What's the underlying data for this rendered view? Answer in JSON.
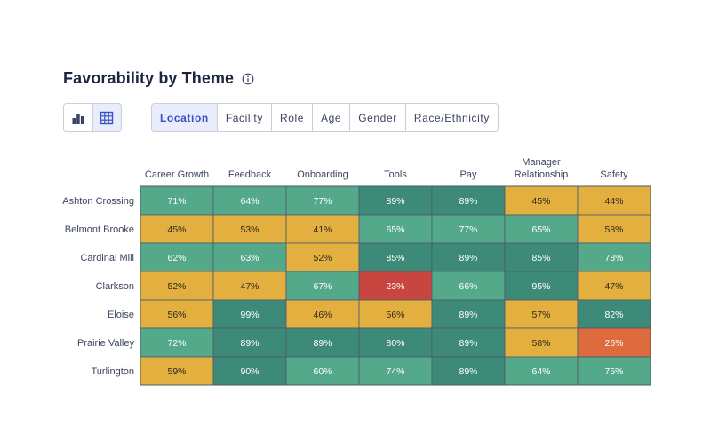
{
  "header": {
    "title": "Favorability by Theme",
    "info_icon": "info-icon"
  },
  "view_toggle": {
    "options": [
      {
        "name": "bar-chart-icon",
        "active": false
      },
      {
        "name": "grid-table-icon",
        "active": true
      }
    ]
  },
  "tabs": [
    {
      "label": "Location",
      "active": true
    },
    {
      "label": "Facility",
      "active": false
    },
    {
      "label": "Role",
      "active": false
    },
    {
      "label": "Age",
      "active": false
    },
    {
      "label": "Gender",
      "active": false
    },
    {
      "label": "Race/Ethnicity",
      "active": false
    }
  ],
  "colors": {
    "high": "#3e8a78",
    "good": "#54a98b",
    "mid": "#e3b040",
    "low_orange": "#dd6b3d",
    "low_red": "#c9453f",
    "accent": "#3551c7"
  },
  "chart_data": {
    "type": "heatmap",
    "value_suffix": "%",
    "columns": [
      [
        "Career Growth"
      ],
      [
        "Feedback"
      ],
      [
        "Onboarding"
      ],
      [
        "Tools"
      ],
      [
        "Pay"
      ],
      [
        "Manager",
        "Relationship"
      ],
      [
        "Safety"
      ]
    ],
    "rows": [
      "Ashton Crossing",
      "Belmont Brooke",
      "Cardinal Mill",
      "Clarkson",
      "Eloise",
      "Prairie Valley",
      "Turlington"
    ],
    "values": [
      [
        71,
        64,
        77,
        89,
        89,
        45,
        44
      ],
      [
        45,
        53,
        41,
        65,
        77,
        65,
        58
      ],
      [
        62,
        63,
        52,
        85,
        89,
        85,
        78
      ],
      [
        52,
        47,
        67,
        23,
        66,
        95,
        47
      ],
      [
        56,
        99,
        46,
        56,
        89,
        57,
        82
      ],
      [
        72,
        89,
        89,
        80,
        89,
        58,
        26
      ],
      [
        59,
        90,
        60,
        74,
        89,
        64,
        75
      ]
    ]
  }
}
